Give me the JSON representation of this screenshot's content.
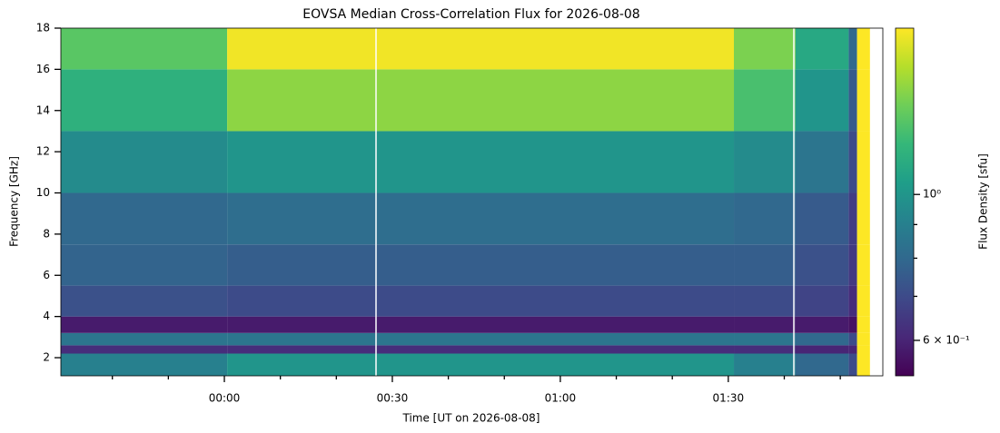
{
  "chart_data": {
    "type": "heatmap",
    "title": "EOVSA Median Cross-Correlation Flux for 2026-08-08",
    "xlabel": "Time [UT on 2026-08-08]",
    "ylabel": "Frequency [GHz]",
    "colorbar_label": "Flux Density [sfu]",
    "colormap": "viridis",
    "zscale": "log",
    "xlim": [
      -29.2,
      117.6
    ],
    "xticks": [
      {
        "value": 0,
        "label": "00:00"
      },
      {
        "value": 30,
        "label": "00:30"
      },
      {
        "value": 60,
        "label": "01:00"
      },
      {
        "value": 90,
        "label": "01:30"
      }
    ],
    "xminorticks": [
      -20,
      -10,
      10,
      20,
      40,
      50,
      70,
      80,
      100,
      110
    ],
    "ylim": [
      1.12,
      18
    ],
    "yticks": [
      2,
      4,
      6,
      8,
      10,
      12,
      14,
      16,
      18
    ],
    "clim": [
      0.53,
      1.79
    ],
    "cticks": [
      {
        "value": 1,
        "label": "10⁰"
      },
      {
        "value": 0.6,
        "label": "6 × 10⁻¹"
      }
    ],
    "cminorticks": [
      0.7,
      0.8,
      0.9
    ],
    "x_edges": [
      -29.2,
      0.5,
      91,
      102,
      111.5,
      113,
      115.3
    ],
    "y_edges": [
      1.12,
      2.2,
      2.6,
      3.2,
      4.0,
      5.5,
      7.5,
      10,
      13,
      16,
      18
    ],
    "z": [
      [
        0.9,
        1.0,
        0.9,
        0.8,
        0.7,
        1.79
      ],
      [
        0.62,
        0.62,
        0.62,
        0.6,
        0.6,
        1.79
      ],
      [
        0.85,
        0.85,
        0.85,
        0.8,
        0.7,
        1.79
      ],
      [
        0.58,
        0.58,
        0.58,
        0.58,
        0.56,
        1.79
      ],
      [
        0.72,
        0.7,
        0.7,
        0.68,
        0.62,
        1.79
      ],
      [
        0.78,
        0.76,
        0.76,
        0.72,
        0.65,
        1.79
      ],
      [
        0.8,
        0.82,
        0.8,
        0.75,
        0.66,
        1.79
      ],
      [
        0.95,
        1.0,
        0.95,
        0.85,
        0.7,
        1.79
      ],
      [
        1.15,
        1.45,
        1.25,
        1.0,
        0.75,
        1.79
      ],
      [
        1.3,
        1.75,
        1.4,
        1.1,
        0.8,
        1.79
      ]
    ]
  }
}
